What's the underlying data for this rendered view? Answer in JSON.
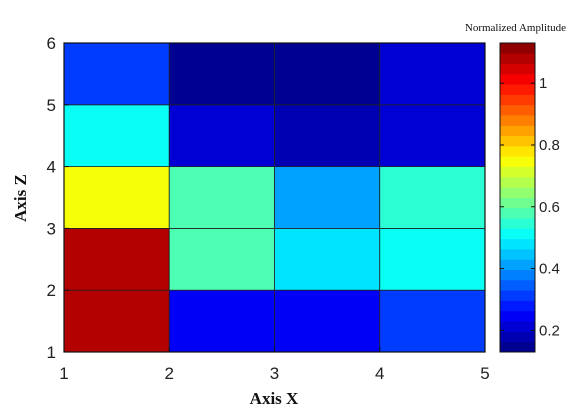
{
  "chart_data": {
    "type": "heatmap",
    "title": "",
    "xlabel": "Axis X",
    "ylabel": "Axis Z",
    "x_edges": [
      1,
      2,
      3,
      4,
      5
    ],
    "y_edges": [
      1,
      2,
      3,
      4,
      5,
      6
    ],
    "xlim": [
      1,
      5
    ],
    "ylim": [
      1,
      6
    ],
    "xticks": [
      "1",
      "2",
      "3",
      "4",
      "5"
    ],
    "yticks": [
      "1",
      "2",
      "3",
      "4",
      "5",
      "6"
    ],
    "values": [
      [
        1.08,
        0.24,
        0.25,
        0.32
      ],
      [
        1.08,
        0.58,
        0.48,
        0.5
      ],
      [
        0.74,
        0.58,
        0.41,
        0.53
      ],
      [
        0.52,
        0.22,
        0.17,
        0.22
      ],
      [
        0.3,
        0.13,
        0.13,
        0.22
      ]
    ],
    "colorbar": {
      "title": "Normalized Amplitude",
      "min": 0.13,
      "max": 1.13,
      "ticks": [
        "0.2",
        "0.4",
        "0.6",
        "0.8",
        "1"
      ],
      "tick_values": [
        0.2,
        0.4,
        0.6,
        0.8,
        1.0
      ],
      "levels": 30,
      "colormap": "jet"
    },
    "grid": false,
    "legend": "colorbar-right"
  }
}
